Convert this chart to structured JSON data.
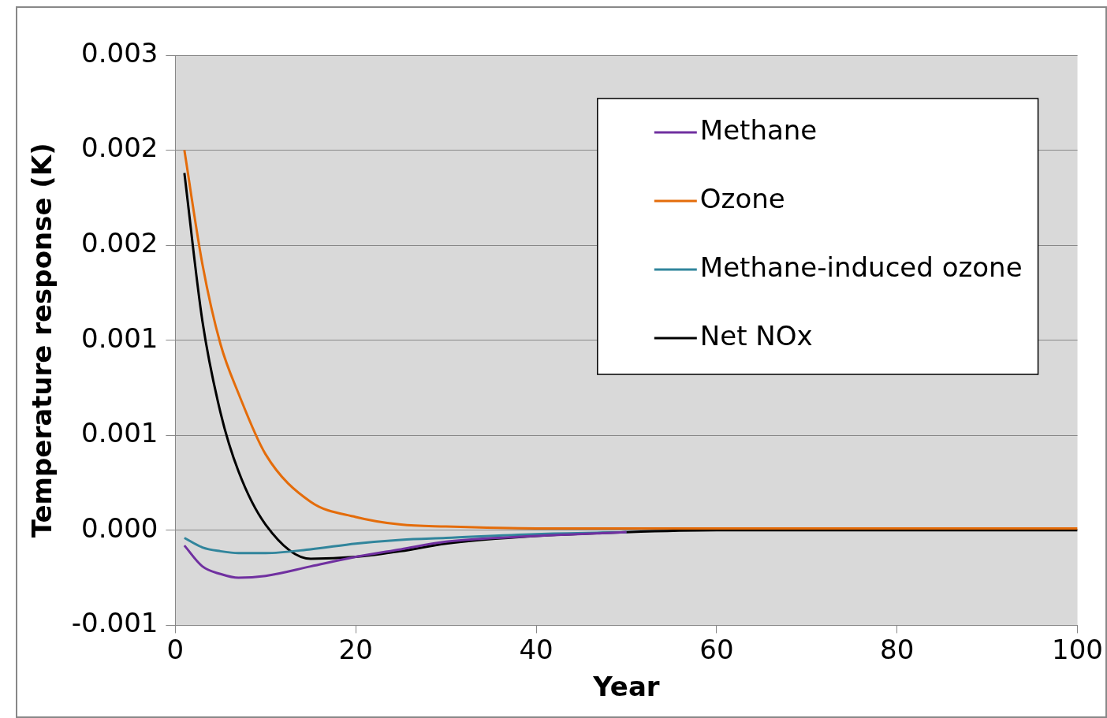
{
  "chart_data": {
    "type": "line",
    "xlabel": "Year",
    "ylabel": "Temperature response (K)",
    "xlim": [
      0,
      100
    ],
    "xticks": [
      0,
      20,
      40,
      60,
      80,
      100
    ],
    "ylim": [
      -0.0005,
      0.0025
    ],
    "yticks": [
      {
        "value": -0.0005,
        "label": "-0.001"
      },
      {
        "value": 0,
        "label": "0.000"
      },
      {
        "value": 0.0005,
        "label": "0.001"
      },
      {
        "value": 0.001,
        "label": "0.001"
      },
      {
        "value": 0.0015,
        "label": "0.002"
      },
      {
        "value": 0.002,
        "label": "0.002"
      },
      {
        "value": 0.0025,
        "label": "0.003"
      }
    ],
    "grid": "y",
    "legend": "top right",
    "marker": "none",
    "line_style": "solid",
    "x": [
      1,
      3,
      5,
      7,
      10,
      15,
      20,
      25,
      30,
      40,
      50,
      60,
      80,
      100
    ],
    "series": [
      {
        "name": "Methane",
        "color": "#7030a0",
        "values": [
          -8e-05,
          -0.00019,
          -0.00023,
          -0.00025,
          -0.00024,
          -0.00019,
          -0.00014,
          -0.0001,
          -6e-05,
          -3e-05,
          -1e-05,
          null,
          null,
          null
        ]
      },
      {
        "name": "Ozone",
        "color": "#e46c0a",
        "values": [
          0.002,
          0.0014,
          0.00098,
          0.00072,
          0.0004,
          0.00015,
          7e-05,
          3e-05,
          2e-05,
          1e-05,
          1e-05,
          1e-05,
          1e-05,
          1e-05
        ]
      },
      {
        "name": "Methane-induced ozone",
        "color": "#31859c",
        "values": [
          -4e-05,
          -9e-05,
          -0.00011,
          -0.00012,
          -0.00012,
          -0.0001,
          -7e-05,
          -5e-05,
          -4e-05,
          -2e-05,
          -1e-05,
          null,
          null,
          null
        ]
      },
      {
        "name": "Net NOx",
        "color": "#000000",
        "values": [
          0.00188,
          0.0011,
          0.00062,
          0.00031,
          3e-05,
          -0.00015,
          -0.00014,
          -0.00011,
          -7e-05,
          -3e-05,
          -1e-05,
          0,
          0,
          0
        ]
      }
    ]
  }
}
